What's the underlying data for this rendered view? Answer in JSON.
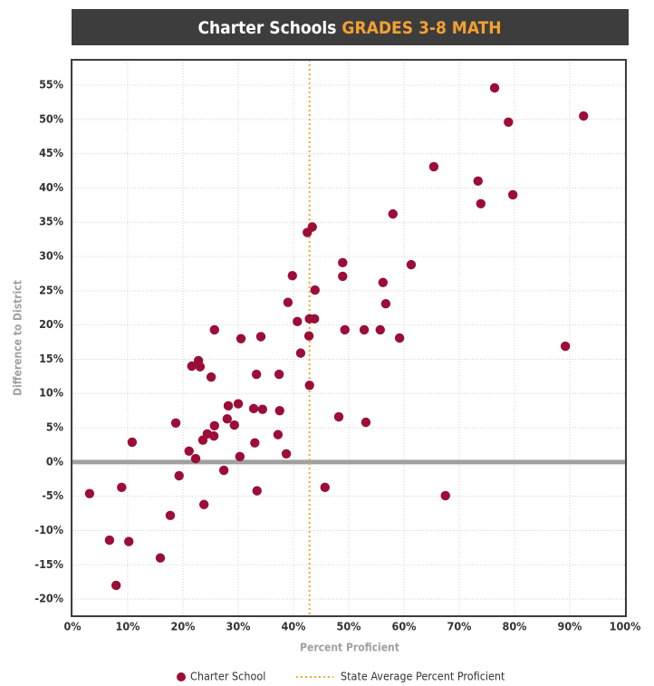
{
  "chart_data": {
    "type": "scatter",
    "title": "Charter Schools",
    "title_highlight": "GRADES 3-8 MATH",
    "x_label": "Percent Proficient",
    "y_label": "Difference to District",
    "series": [
      {
        "name": "Charter School",
        "color": "#9b0e37",
        "x": [
          3.1,
          8.9,
          6.7,
          10.2,
          7.9,
          10.8,
          15.9,
          17.7,
          18.7,
          19.3,
          21.1,
          21.6,
          22.3,
          22.8,
          23.1,
          23.6,
          23.8,
          24.4,
          25.1,
          25.6,
          25.7,
          25.7,
          27.4,
          28.0,
          28.2,
          29.3,
          30.0,
          30.3,
          30.5,
          32.8,
          33.0,
          33.3,
          33.4,
          34.1,
          34.4,
          37.2,
          37.4,
          37.5,
          38.7,
          39.0,
          39.8,
          40.7,
          41.3,
          42.5,
          42.8,
          42.9,
          42.9,
          43.4,
          43.8,
          43.9,
          45.7,
          48.2,
          48.9,
          48.9,
          49.3,
          52.8,
          53.1,
          55.7,
          56.2,
          56.7,
          58.0,
          59.2,
          61.3,
          65.4,
          67.5,
          73.4,
          73.9,
          76.4,
          78.9,
          79.7,
          89.2,
          92.5
        ],
        "values": [
          -4.6,
          -3.7,
          -11.4,
          -11.6,
          -18.0,
          2.9,
          -14.0,
          -7.8,
          5.7,
          -2.0,
          1.6,
          14.0,
          0.5,
          14.8,
          13.9,
          3.2,
          -6.2,
          4.1,
          12.4,
          3.8,
          5.3,
          19.3,
          -1.2,
          6.3,
          8.2,
          5.4,
          8.5,
          0.8,
          18.0,
          7.8,
          2.8,
          12.8,
          -4.2,
          18.3,
          7.7,
          4.0,
          12.8,
          7.5,
          1.2,
          23.3,
          27.2,
          20.5,
          15.9,
          33.5,
          18.4,
          11.2,
          20.9,
          34.3,
          20.9,
          25.1,
          -3.7,
          6.6,
          29.1,
          27.1,
          19.3,
          19.3,
          5.8,
          19.3,
          26.2,
          23.1,
          36.2,
          18.1,
          28.8,
          43.1,
          -4.9,
          41.0,
          37.7,
          54.6,
          49.6,
          39.0,
          16.9,
          50.5
        ]
      }
    ],
    "reference_line": {
      "value": 42.9,
      "label": "State Average Percent Proficient",
      "color": "#f0a830"
    },
    "zero_line": {
      "value": 0,
      "color": "#a0a0a0"
    },
    "xlim": [
      0,
      100
    ],
    "ylim": [
      -22.5,
      58.7
    ],
    "xticks": [
      {
        "value": 0,
        "label": "0%"
      },
      {
        "value": 10,
        "label": "10%"
      },
      {
        "value": 20,
        "label": "20%"
      },
      {
        "value": 30,
        "label": "30%"
      },
      {
        "value": 40,
        "label": "40%"
      },
      {
        "value": 50,
        "label": "50%"
      },
      {
        "value": 60,
        "label": "60%"
      },
      {
        "value": 70,
        "label": "70%"
      },
      {
        "value": 80,
        "label": "80%"
      },
      {
        "value": 90,
        "label": "90%"
      },
      {
        "value": 100,
        "label": "100%"
      }
    ],
    "yticks": [
      {
        "value": -20,
        "label": "-20%"
      },
      {
        "value": -15,
        "label": "-15%"
      },
      {
        "value": -10,
        "label": "-10%"
      },
      {
        "value": -5,
        "label": "-5%"
      },
      {
        "value": 0,
        "label": "0%"
      },
      {
        "value": 5,
        "label": "5%"
      },
      {
        "value": 10,
        "label": "10%"
      },
      {
        "value": 15,
        "label": "15%"
      },
      {
        "value": 20,
        "label": "20%"
      },
      {
        "value": 25,
        "label": "25%"
      },
      {
        "value": 30,
        "label": "30%"
      },
      {
        "value": 35,
        "label": "35%"
      },
      {
        "value": 40,
        "label": "40%"
      },
      {
        "value": 45,
        "label": "45%"
      },
      {
        "value": 50,
        "label": "50%"
      },
      {
        "value": 55,
        "label": "55%"
      }
    ],
    "grid": true
  }
}
